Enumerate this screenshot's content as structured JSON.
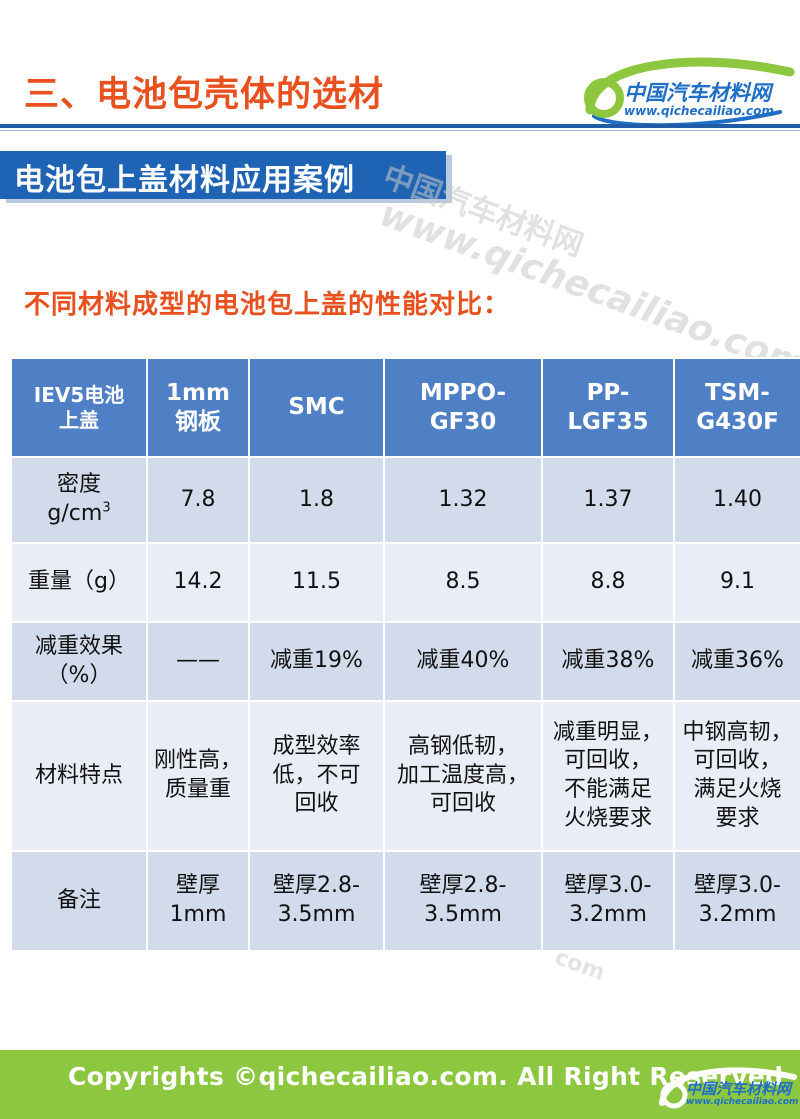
{
  "header": {
    "section_title": "三、电池包壳体的选材",
    "logo_cn": "中国汽车材料网",
    "logo_url": "www.qichecailiao.com"
  },
  "subtitle": "电池包上盖材料应用案例",
  "watermark": {
    "line1": "中国汽车材料网",
    "line2": "www.qichecailiao.com",
    "fragment": "com"
  },
  "compare_title": "不同材料成型的电池包上盖的性能对比：",
  "table": {
    "headers": [
      [
        "IEV5电池",
        "上盖"
      ],
      [
        "1mm",
        "钢板"
      ],
      [
        "SMC"
      ],
      [
        "MPPO-",
        "GF30"
      ],
      [
        "PP-",
        "LGF35"
      ],
      [
        "TSM-",
        "G430F"
      ]
    ],
    "rows": [
      {
        "label": [
          "密度",
          "g/cm"
        ],
        "label_sup": "3",
        "cells": [
          [
            "7.8"
          ],
          [
            "1.8"
          ],
          [
            "1.32"
          ],
          [
            "1.37"
          ],
          [
            "1.40"
          ]
        ]
      },
      {
        "label": [
          "重量（g）"
        ],
        "cells": [
          [
            "14.2"
          ],
          [
            "11.5"
          ],
          [
            "8.5"
          ],
          [
            "8.8"
          ],
          [
            "9.1"
          ]
        ]
      },
      {
        "label": [
          "减重效果",
          "（%）"
        ],
        "cells": [
          [
            "——"
          ],
          [
            "减重19%"
          ],
          [
            "减重40%"
          ],
          [
            "减重38%"
          ],
          [
            "减重36%"
          ]
        ]
      },
      {
        "label": [
          "材料特点"
        ],
        "cells": [
          [
            "刚性高，",
            "质量重"
          ],
          [
            "成型效率",
            "低，不可",
            "回收"
          ],
          [
            "高钢低韧，",
            "加工温度高，",
            "可回收"
          ],
          [
            "减重明显，",
            "可回收，",
            "不能满足",
            "火烧要求"
          ],
          [
            "中钢高韧，",
            "可回收，",
            "满足火烧",
            "要求"
          ]
        ]
      },
      {
        "label": [
          "备注"
        ],
        "cells": [
          [
            "壁厚",
            "1mm"
          ],
          [
            "壁厚2.8-",
            "3.5mm"
          ],
          [
            "壁厚2.8-",
            "3.5mm"
          ],
          [
            "壁厚3.0-",
            "3.2mm"
          ],
          [
            "壁厚3.0-",
            "3.2mm"
          ]
        ]
      }
    ]
  },
  "footer": {
    "copyright": "Copyrights ©qichecailiao.com. All Right Reserved",
    "logo_cn": "中国汽车材料网",
    "logo_url": "www.qichecailiao.com"
  },
  "colors": {
    "accent_orange": "#e8501e",
    "brand_blue": "#1f63b4",
    "table_header": "#4f7fc5",
    "footer_green": "#8dc63f"
  }
}
